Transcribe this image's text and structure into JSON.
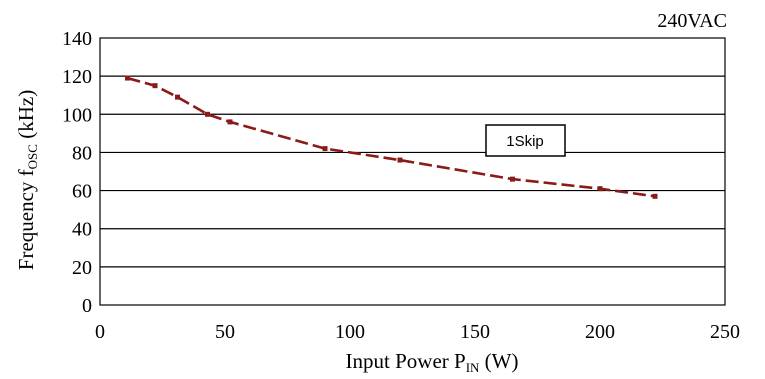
{
  "chart_data": {
    "type": "line",
    "condition_label": "240VAC",
    "annotation": "1Skip",
    "xlabel": {
      "main": "Input Power P",
      "sub": "IN",
      "unit": " (W)"
    },
    "ylabel": {
      "main": "Frequency f",
      "sub": "OSC",
      "unit": " (kHz)"
    },
    "xlim": [
      0,
      250
    ],
    "ylim": [
      0,
      140
    ],
    "x_ticks": [
      "0",
      "50",
      "100",
      "150",
      "200",
      "250"
    ],
    "y_ticks": [
      "0",
      "20",
      "40",
      "60",
      "80",
      "100",
      "120",
      "140"
    ],
    "grid": "horizontal",
    "series": [
      {
        "color": "#8b1a1a",
        "style": "dashed",
        "points": [
          [
            11,
            119
          ],
          [
            22,
            115
          ],
          [
            31,
            109
          ],
          [
            43,
            100
          ],
          [
            52,
            96
          ],
          [
            90,
            82
          ],
          [
            120,
            76
          ],
          [
            165,
            66
          ],
          [
            200,
            61
          ],
          [
            222,
            57
          ]
        ]
      }
    ]
  }
}
